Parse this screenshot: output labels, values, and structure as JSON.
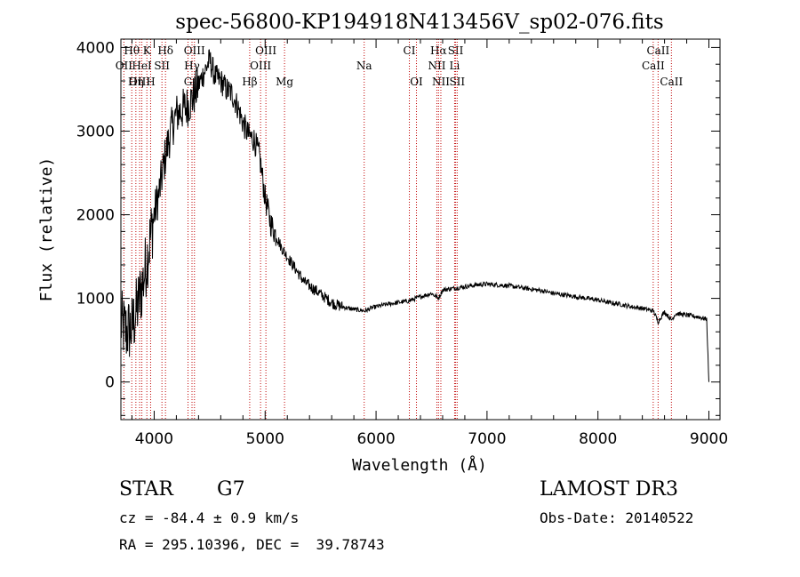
{
  "chart_data": {
    "type": "line",
    "title": "spec-56800-KP194918N413456V_sp02-076.fits",
    "xlabel": "Wavelength (Å)",
    "ylabel": "Flux (relative)",
    "xlim": [
      3700,
      9100
    ],
    "ylim": [
      -450,
      4100
    ],
    "xticks": [
      4000,
      5000,
      6000,
      7000,
      8000,
      9000
    ],
    "yticks": [
      0,
      1000,
      2000,
      3000,
      4000
    ],
    "grid": false,
    "series": [
      {
        "name": "flux",
        "x": [
          3700,
          3750,
          3800,
          3850,
          3900,
          3950,
          4000,
          4050,
          4100,
          4150,
          4200,
          4250,
          4300,
          4350,
          4400,
          4450,
          4500,
          4550,
          4600,
          4650,
          4700,
          4750,
          4800,
          4850,
          4900,
          4950,
          5000,
          5050,
          5100,
          5150,
          5200,
          5250,
          5300,
          5350,
          5400,
          5450,
          5500,
          5550,
          5600,
          5650,
          5700,
          5750,
          5800,
          5850,
          5900,
          5950,
          6000,
          6100,
          6200,
          6300,
          6400,
          6500,
          6563,
          6600,
          6700,
          6800,
          6900,
          7000,
          7100,
          7200,
          7300,
          7400,
          7500,
          7600,
          7700,
          7800,
          7900,
          8000,
          8100,
          8200,
          8300,
          8400,
          8500,
          8542,
          8600,
          8662,
          8700,
          8800,
          8900,
          8980,
          9000
        ],
        "y": [
          700,
          600,
          650,
          900,
          1200,
          1600,
          2000,
          2300,
          2700,
          3000,
          3200,
          3250,
          3300,
          3400,
          3550,
          3700,
          3850,
          3650,
          3600,
          3500,
          3450,
          3300,
          3100,
          2950,
          2900,
          2700,
          2200,
          1900,
          1750,
          1600,
          1500,
          1400,
          1300,
          1200,
          1150,
          1100,
          1050,
          1000,
          950,
          920,
          900,
          880,
          870,
          860,
          850,
          880,
          900,
          930,
          950,
          970,
          1020,
          1060,
          1000,
          1100,
          1120,
          1140,
          1160,
          1170,
          1160,
          1150,
          1130,
          1110,
          1090,
          1060,
          1040,
          1020,
          1000,
          980,
          950,
          930,
          900,
          880,
          850,
          720,
          840,
          740,
          820,
          800,
          780,
          750,
          0
        ]
      }
    ],
    "lines": [
      {
        "label": "Hθ",
        "x": 3798,
        "row": 1
      },
      {
        "label": "OII",
        "x": 3727,
        "row": 2
      },
      {
        "label": "OIII",
        "x": 3869,
        "row": 3
      },
      {
        "label": "K",
        "x": 3934,
        "row": 1
      },
      {
        "label": "HeI",
        "x": 3889,
        "row": 2
      },
      {
        "label": "Hη",
        "x": 3835,
        "row": 3
      },
      {
        "label": "SII",
        "x": 4070,
        "row": 2
      },
      {
        "label": "H",
        "x": 3968,
        "row": 3
      },
      {
        "label": "Hδ",
        "x": 4102,
        "row": 1
      },
      {
        "label": "OIII",
        "x": 4363,
        "row": 1
      },
      {
        "label": "Hγ",
        "x": 4341,
        "row": 2
      },
      {
        "label": "G",
        "x": 4305,
        "row": 3
      },
      {
        "label": "Hβ",
        "x": 4861,
        "row": 3
      },
      {
        "label": "OIII",
        "x": 5007,
        "row": 1
      },
      {
        "label": "OIII",
        "x": 4959,
        "row": 2
      },
      {
        "label": "Mg",
        "x": 5175,
        "row": 3
      },
      {
        "label": "Na",
        "x": 5893,
        "row": 2
      },
      {
        "label": "CI",
        "x": 6300,
        "row": 1
      },
      {
        "label": "OI",
        "x": 6364,
        "row": 3
      },
      {
        "label": "Hα",
        "x": 6563,
        "row": 1
      },
      {
        "label": "NII",
        "x": 6548,
        "row": 2
      },
      {
        "label": "NII",
        "x": 6584,
        "row": 3
      },
      {
        "label": "SII",
        "x": 6717,
        "row": 1
      },
      {
        "label": "Li",
        "x": 6708,
        "row": 2
      },
      {
        "label": "SII",
        "x": 6731,
        "row": 3
      },
      {
        "label": "CaII",
        "x": 8542,
        "row": 1
      },
      {
        "label": "CaII",
        "x": 8498,
        "row": 2
      },
      {
        "label": "CaII",
        "x": 8662,
        "row": 3
      }
    ]
  },
  "footer": {
    "class_label": "STAR",
    "subclass": "G7",
    "survey": "LAMOST DR3",
    "cz": "cz = -84.4 ± 0.9 km/s",
    "obs_date": "Obs-Date: 20140522",
    "coords": "RA = 295.10396, DEC =  39.78743"
  }
}
